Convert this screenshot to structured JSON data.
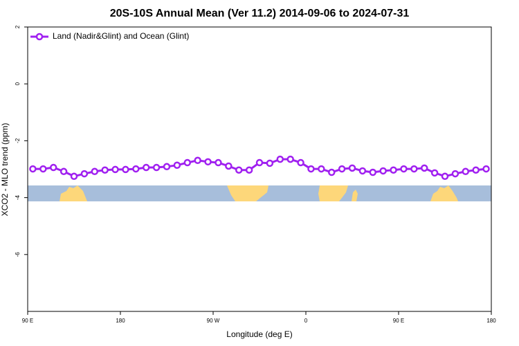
{
  "chart_data": {
    "type": "line",
    "title": "20S-10S Annual Mean (Ver 11.2)   2014-09-06 to 2024-07-31",
    "x_label": "Longitude (deg E)",
    "y_label": "XCO2 - MLO trend (ppm)",
    "x": [
      95,
      105,
      115,
      125,
      135,
      145,
      155,
      165,
      175,
      185,
      195,
      205,
      215,
      225,
      235,
      245,
      255,
      265,
      275,
      285,
      295,
      305,
      315,
      325,
      335,
      345,
      355,
      365,
      375,
      385,
      395,
      405,
      415,
      425,
      435,
      445,
      455,
      465,
      475,
      485,
      495,
      505,
      515,
      525,
      535
    ],
    "series": [
      {
        "name": "Land (Nadir&Glint) and Ocean (Glint)",
        "color": "#a020f0",
        "values": [
          -2.99,
          -2.99,
          -2.94,
          -3.08,
          -3.25,
          -3.16,
          -3.08,
          -3.03,
          -3.01,
          -3.01,
          -2.99,
          -2.94,
          -2.94,
          -2.91,
          -2.86,
          -2.77,
          -2.69,
          -2.74,
          -2.77,
          -2.89,
          -3.03,
          -3.03,
          -2.77,
          -2.79,
          -2.65,
          -2.65,
          -2.77,
          -2.99,
          -2.99,
          -3.11,
          -2.99,
          -2.96,
          -3.06,
          -3.11,
          -3.06,
          -3.03,
          -2.99,
          -2.99,
          -2.96,
          -3.13,
          -3.25,
          -3.16,
          -3.08,
          -3.03,
          -2.99
        ]
      }
    ],
    "xlim": [
      90,
      540
    ],
    "xticks": [
      {
        "value": 90,
        "label": "90 E"
      },
      180,
      {
        "value": 270,
        "label": "90 W"
      },
      {
        "value": 360,
        "label": "0"
      },
      {
        "value": 450,
        "label": "90 E"
      },
      {
        "value": 540,
        "label": "180"
      }
    ],
    "ylim": [
      -8,
      2
    ],
    "yticks": [
      -6,
      -4,
      -2,
      0,
      2
    ],
    "legend": "upper left"
  }
}
